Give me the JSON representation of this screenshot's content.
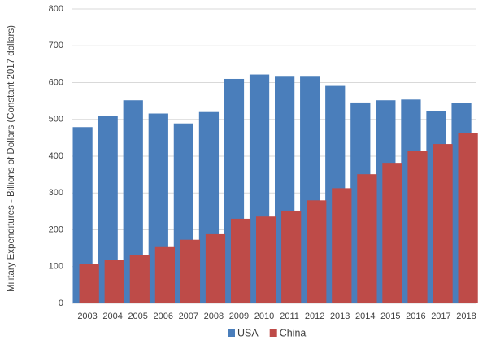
{
  "chart_data": {
    "type": "bar",
    "y_label": "Military Expenditures - Billions of Dollars (Constant 2017 dollars)",
    "categories": [
      "2003",
      "2004",
      "2005",
      "2006",
      "2007",
      "2008",
      "2009",
      "2010",
      "2011",
      "2012",
      "2013",
      "2014",
      "2015",
      "2016",
      "2017",
      "2018"
    ],
    "series": [
      {
        "name": "USA",
        "color": "#4a7ebb",
        "values": [
          479,
          510,
          552,
          516,
          489,
          520,
          610,
          622,
          616,
          616,
          591,
          546,
          552,
          554,
          523,
          545
        ]
      },
      {
        "name": "China",
        "color": "#be4b48",
        "values": [
          108,
          119,
          132,
          153,
          173,
          188,
          230,
          236,
          252,
          280,
          313,
          351,
          382,
          414,
          433,
          463
        ]
      }
    ],
    "ylim": [
      0,
      800
    ],
    "yticks": [
      0,
      100,
      200,
      300,
      400,
      500,
      600,
      700,
      800
    ],
    "grid": true,
    "legend": "bottom"
  }
}
